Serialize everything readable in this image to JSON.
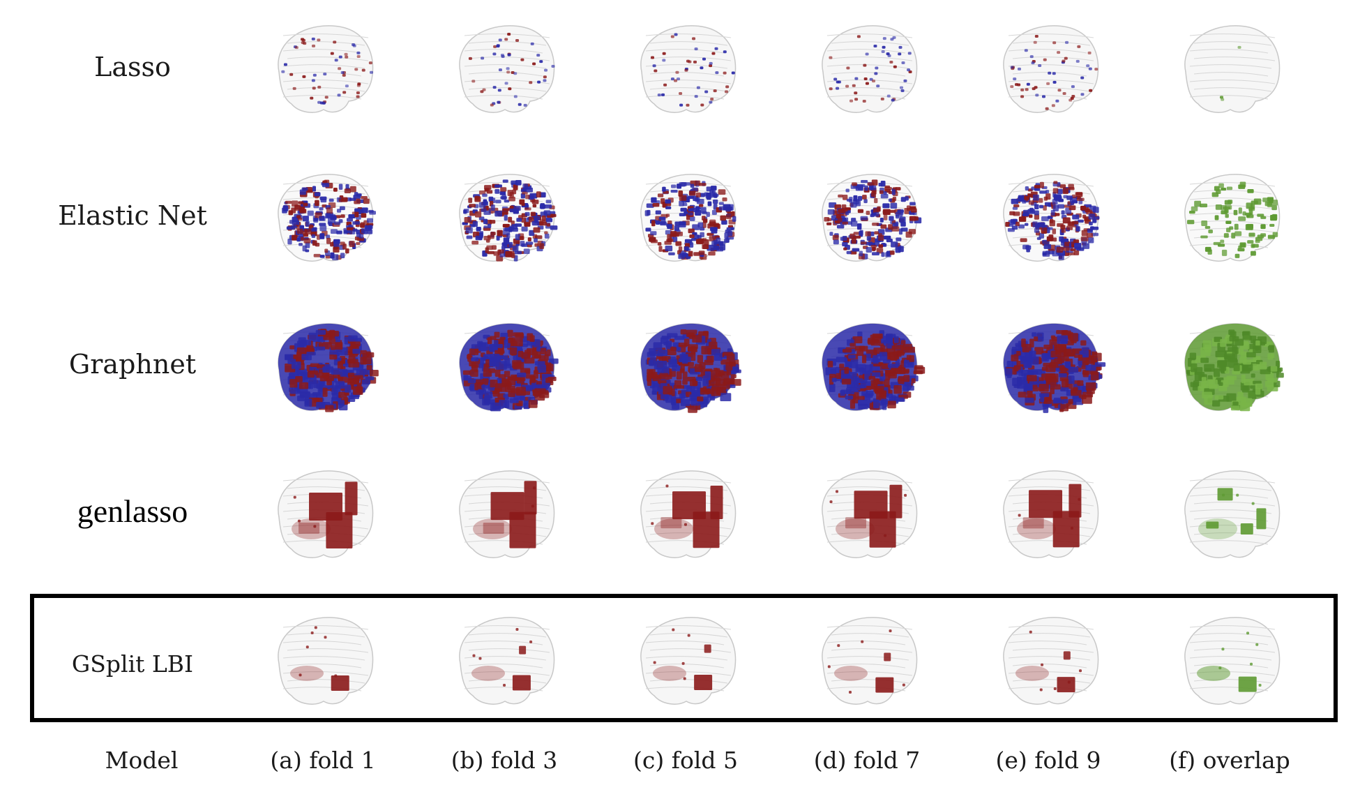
{
  "figure": {
    "rows": [
      {
        "label": "Lasso",
        "style": "sparse",
        "brains": [
          "fold 1",
          "fold 3",
          "fold 5",
          "fold 7",
          "fold 9",
          "overlap"
        ]
      },
      {
        "label": "Elastic Net",
        "style": "medium",
        "brains": [
          "fold 1",
          "fold 3",
          "fold 5",
          "fold 7",
          "fold 9",
          "overlap"
        ]
      },
      {
        "label": "Graphnet",
        "style": "dense",
        "brains": [
          "fold 1",
          "fold 3",
          "fold 5",
          "fold 7",
          "fold 9",
          "overlap"
        ]
      },
      {
        "label": "genlasso",
        "style": "regions",
        "brains": [
          "fold 1",
          "fold 3",
          "fold 5",
          "fold 7",
          "fold 9",
          "overlap"
        ]
      },
      {
        "label": "GSplit LBI",
        "style": "small-regions",
        "brains": [
          "fold 1",
          "fold 3",
          "fold 5",
          "fold 7",
          "fold 9",
          "overlap"
        ]
      }
    ],
    "column_labels": [
      "Model",
      "(a) fold 1",
      "(b) fold 3",
      "(c) fold 5",
      "(d) fold 7",
      "(e) fold 9",
      "(f) overlap"
    ],
    "highlighted_row": "GSplit LBI",
    "colors": {
      "positive": "#8b1a1a",
      "negative": "#2a2aa8",
      "overlap": "#5e9a32",
      "brain_outline": "#c8c8c8",
      "brain_fill": "#eeeeee",
      "box_border": "#000000"
    }
  }
}
